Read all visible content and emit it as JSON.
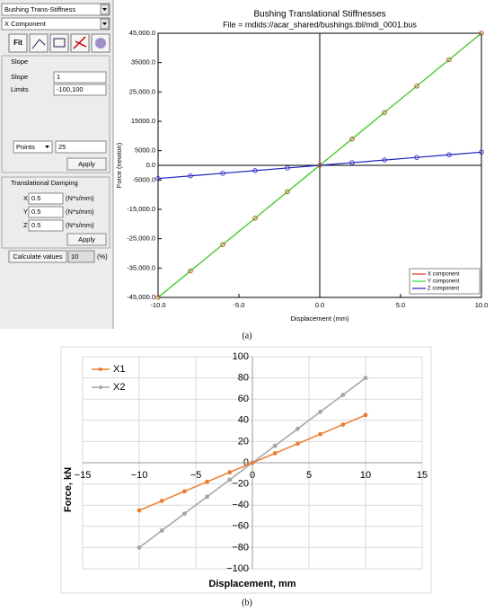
{
  "panel": {
    "component_type": "Bushing Trans-Stiffness",
    "component_axis": "X Component",
    "fit_button": "Fit",
    "slope_header": "Slope",
    "slope_label": "Slope",
    "slope_value": "1",
    "limits_label": "Limits",
    "limits_value": "-100,100",
    "points_select": "Points",
    "points_value": "25",
    "apply_slope": "Apply",
    "damping_header": "Translational Damping",
    "damping_rows": [
      {
        "axis": "X",
        "value": "0.5",
        "unit": "(N*s/mm)"
      },
      {
        "axis": "Y",
        "value": "0.5",
        "unit": "(N*s/mm)"
      },
      {
        "axis": "Z",
        "value": "0.5",
        "unit": "(N*s/mm)"
      }
    ],
    "apply_damping": "Apply",
    "calculate_button": "Calculate values",
    "calculate_value": "10",
    "calculate_unit": "(%)"
  },
  "captions": [
    "(a)",
    "(b)"
  ],
  "chart_data": [
    {
      "type": "line",
      "title": "Bushing Translational Stiffnesses",
      "subtitle": "File = mdids://acar_shared/bushings.tbl/mdi_0001.bus",
      "x_label": "Displacement (mm)",
      "y_label": "Force (newton)",
      "x": [
        -10,
        -8,
        -6,
        -4,
        -2,
        0,
        2,
        4,
        6,
        8,
        10
      ],
      "series": [
        {
          "name": "X component",
          "color": "#e03020",
          "values": [
            -45000,
            -36000,
            -27000,
            -18000,
            -9000,
            0,
            9000,
            18000,
            27000,
            36000,
            45000
          ]
        },
        {
          "name": "Y component",
          "color": "#33dd33",
          "values": [
            -45000,
            -36000,
            -27000,
            -18000,
            -9000,
            0,
            9000,
            18000,
            27000,
            36000,
            45000
          ]
        },
        {
          "name": "Z component",
          "color": "#2020c0",
          "values": [
            -4500,
            -3600,
            -2700,
            -1800,
            -900,
            0,
            900,
            1800,
            2700,
            3600,
            4500
          ]
        }
      ],
      "xlim": [
        -10,
        10
      ],
      "ylim": [
        -45000,
        45000
      ],
      "xticks": [
        {
          "value": -10,
          "label": "-10.0"
        },
        {
          "value": -5,
          "label": "-5.0"
        },
        {
          "value": 0,
          "label": "0.0"
        },
        {
          "value": 5,
          "label": "5.0"
        },
        {
          "value": 10,
          "label": "10.0"
        }
      ],
      "yticks": [
        {
          "value": -45000,
          "label": "-45,000.0"
        },
        {
          "value": -35000,
          "label": "-35,000.0"
        },
        {
          "value": -25000,
          "label": "-25,000.0"
        },
        {
          "value": -15000,
          "label": "-15,000.0"
        },
        {
          "value": -5000,
          "label": "-5000.0"
        },
        {
          "value": 0,
          "label": "0.0"
        },
        {
          "value": 5000,
          "label": "5000.0"
        },
        {
          "value": 15000,
          "label": "15000.0"
        },
        {
          "value": 25000,
          "label": "25,000.0"
        },
        {
          "value": 35000,
          "label": "35000.0"
        },
        {
          "value": 45000,
          "label": "45,000.0"
        }
      ],
      "grid": false,
      "legend": "lower right"
    },
    {
      "type": "line",
      "x_label": "Displacement, mm",
      "y_label": "Force, kN",
      "x": [
        -10,
        -8,
        -6,
        -4,
        -2,
        0,
        2,
        4,
        6,
        8,
        10
      ],
      "series": [
        {
          "name": "X1",
          "color": "#ed7d31",
          "values": [
            -45,
            -36,
            -27,
            -18,
            -9,
            0,
            9,
            18,
            27,
            36,
            45
          ]
        },
        {
          "name": "X2",
          "color": "#a5a5a5",
          "values": [
            -80,
            -64,
            -48,
            -32,
            -16,
            0,
            16,
            32,
            48,
            64,
            80
          ]
        }
      ],
      "xlim": [
        -15,
        15
      ],
      "ylim": [
        -100,
        100
      ],
      "xticks": [
        {
          "value": -15,
          "label": "−15"
        },
        {
          "value": -10,
          "label": "−10"
        },
        {
          "value": -5,
          "label": "−5"
        },
        0,
        5,
        10,
        15
      ],
      "yticks": [
        {
          "value": -100,
          "label": "−100"
        },
        {
          "value": -80,
          "label": "−80"
        },
        {
          "value": -60,
          "label": "−60"
        },
        {
          "value": -40,
          "label": "−40"
        },
        {
          "value": -20,
          "label": "−20"
        },
        0,
        20,
        40,
        60,
        80,
        100
      ],
      "grid": true,
      "legend": "upper left"
    }
  ]
}
